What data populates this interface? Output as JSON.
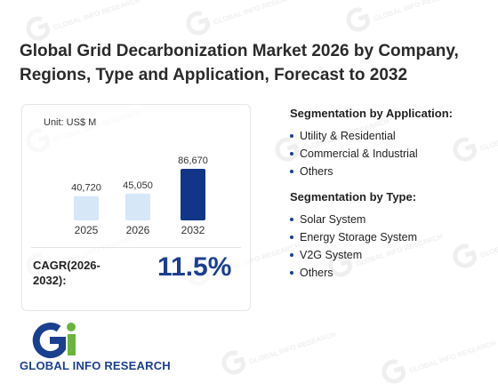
{
  "title": "Global Grid Decarbonization Market 2026 by Company, Regions, Type and Application, Forecast to 2032",
  "watermark_text": "GLOBAL INFO RESEARCH",
  "chart_data": {
    "type": "bar",
    "unit_label": "Unit: US$ M",
    "categories": [
      "2025",
      "2026",
      "2032"
    ],
    "values": [
      40720,
      45050,
      86670
    ],
    "data_labels": [
      "40,720",
      "45,050",
      "86,670"
    ],
    "bar_colors": [
      "#d6e8f8",
      "#d6e8f8",
      "#123687"
    ],
    "ylim": [
      0,
      100000
    ],
    "grid": false
  },
  "cagr": {
    "label": "CAGR(2026-2032):",
    "value": "11.5%"
  },
  "segmentation_application": {
    "heading": "Segmentation by Application:",
    "items": [
      "Utility & Residential",
      "Commercial & Industrial",
      "Others"
    ]
  },
  "segmentation_type": {
    "heading": "Segmentation by Type:",
    "items": [
      "Solar System",
      "Energy Storage System",
      "V2G System",
      "Others"
    ]
  },
  "logo": {
    "text": "GLOBAL INFO RESEARCH",
    "colors": {
      "blue": "#1b3f8f",
      "green": "#6cb33e"
    }
  }
}
